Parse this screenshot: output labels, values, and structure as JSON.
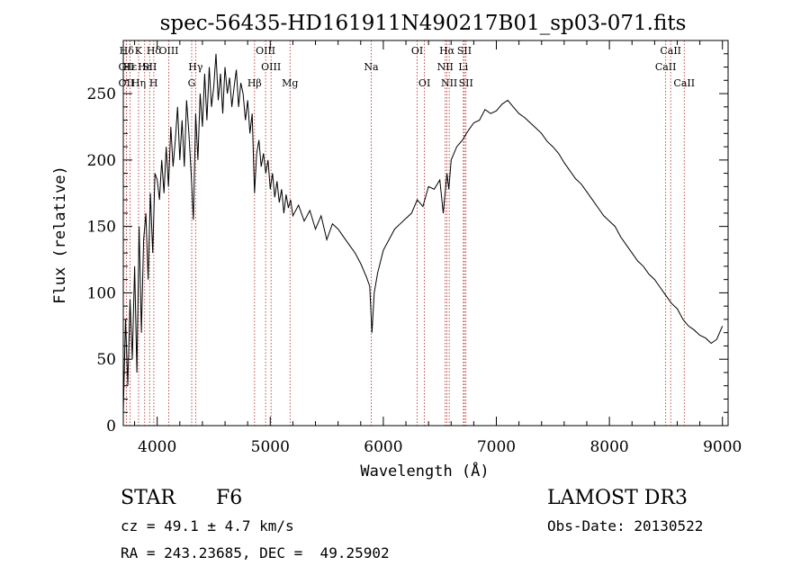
{
  "chart_data": {
    "type": "line",
    "title": "spec-56435-HD161911N490217B01_sp03-071.fits",
    "xlabel": "Wavelength (Å)",
    "ylabel": "Flux (relative)",
    "xlim": [
      3700,
      9050
    ],
    "ylim": [
      0,
      290
    ],
    "x_ticks": [
      4000,
      5000,
      6000,
      7000,
      8000,
      9000
    ],
    "y_ticks": [
      0,
      50,
      100,
      150,
      200,
      250
    ],
    "x_minor_step": 200,
    "y_minor_step": 10,
    "series": [
      {
        "name": "spectrum",
        "color": "#000000",
        "x": [
          3700,
          3720,
          3740,
          3760,
          3780,
          3800,
          3820,
          3840,
          3860,
          3880,
          3900,
          3920,
          3940,
          3960,
          3980,
          4000,
          4020,
          4040,
          4060,
          4080,
          4100,
          4120,
          4140,
          4160,
          4180,
          4200,
          4220,
          4240,
          4260,
          4280,
          4300,
          4320,
          4340,
          4360,
          4380,
          4400,
          4420,
          4440,
          4460,
          4480,
          4500,
          4520,
          4540,
          4560,
          4580,
          4600,
          4620,
          4640,
          4660,
          4680,
          4700,
          4720,
          4740,
          4760,
          4780,
          4800,
          4820,
          4840,
          4861,
          4880,
          4900,
          4920,
          4940,
          4960,
          4980,
          5000,
          5020,
          5040,
          5060,
          5080,
          5100,
          5120,
          5140,
          5160,
          5180,
          5200,
          5250,
          5300,
          5350,
          5400,
          5450,
          5500,
          5550,
          5600,
          5650,
          5700,
          5750,
          5800,
          5850,
          5880,
          5900,
          5920,
          5950,
          6000,
          6050,
          6100,
          6150,
          6200,
          6250,
          6300,
          6350,
          6400,
          6450,
          6500,
          6530,
          6563,
          6580,
          6600,
          6650,
          6700,
          6750,
          6800,
          6850,
          6900,
          6950,
          7000,
          7050,
          7100,
          7150,
          7200,
          7250,
          7300,
          7350,
          7400,
          7450,
          7500,
          7550,
          7600,
          7650,
          7700,
          7750,
          7800,
          7850,
          7900,
          7950,
          8000,
          8050,
          8100,
          8150,
          8200,
          8250,
          8300,
          8350,
          8400,
          8450,
          8500,
          8550,
          8600,
          8650,
          8700,
          8750,
          8800,
          8850,
          8900,
          8950,
          9000
        ],
        "y": [
          10,
          80,
          30,
          95,
          50,
          120,
          40,
          150,
          70,
          140,
          160,
          110,
          175,
          130,
          190,
          185,
          170,
          200,
          175,
          210,
          180,
          225,
          195,
          215,
          240,
          200,
          230,
          195,
          245,
          220,
          190,
          155,
          235,
          200,
          250,
          225,
          265,
          230,
          270,
          240,
          255,
          280,
          245,
          265,
          235,
          270,
          250,
          262,
          240,
          255,
          268,
          240,
          258,
          250,
          230,
          245,
          220,
          235,
          175,
          205,
          215,
          195,
          205,
          190,
          200,
          178,
          190,
          172,
          184,
          168,
          178,
          160,
          174,
          164,
          170,
          158,
          166,
          154,
          162,
          148,
          158,
          140,
          152,
          148,
          142,
          136,
          130,
          122,
          112,
          105,
          70,
          100,
          115,
          132,
          140,
          148,
          152,
          156,
          160,
          170,
          165,
          180,
          178,
          185,
          160,
          190,
          178,
          200,
          210,
          215,
          222,
          228,
          230,
          238,
          235,
          237,
          242,
          245,
          240,
          235,
          232,
          228,
          224,
          220,
          214,
          210,
          205,
          198,
          192,
          186,
          182,
          176,
          170,
          164,
          158,
          154,
          150,
          142,
          136,
          130,
          124,
          120,
          114,
          110,
          104,
          98,
          92,
          88,
          80,
          75,
          72,
          68,
          66,
          62,
          65,
          75
        ]
      }
    ],
    "line_markers": [
      {
        "label": "Hδ",
        "wl": 3730,
        "row": 1
      },
      {
        "label": "OII",
        "wl": 3727,
        "row": 2
      },
      {
        "label": "OII",
        "wl": 3727,
        "row": 3
      },
      {
        "label": "Hε",
        "wl": 3760,
        "row": 2
      },
      {
        "label": "Hη",
        "wl": 3835,
        "row": 3
      },
      {
        "label": "K",
        "wl": 3834,
        "row": 1
      },
      {
        "label": "Hε",
        "wl": 3889,
        "row": 2
      },
      {
        "label": "Hδ",
        "wl": 3970,
        "row": 1
      },
      {
        "label": "SII",
        "wl": 3933,
        "row": 2
      },
      {
        "label": "H",
        "wl": 3968,
        "row": 3
      },
      {
        "label": "OIII",
        "wl": 4102,
        "row": 1
      },
      {
        "label": "Hγ",
        "wl": 4340,
        "row": 2
      },
      {
        "label": "G",
        "wl": 4305,
        "row": 3
      },
      {
        "label": "OIII",
        "wl": 4959,
        "row": 1
      },
      {
        "label": "OIII",
        "wl": 5007,
        "row": 2
      },
      {
        "label": "Hβ",
        "wl": 4861,
        "row": 3
      },
      {
        "label": "Mg",
        "wl": 5175,
        "row": 3
      },
      {
        "label": "Na",
        "wl": 5893,
        "row": 2
      },
      {
        "label": "OI",
        "wl": 6300,
        "row": 1
      },
      {
        "label": "OI",
        "wl": 6364,
        "row": 3
      },
      {
        "label": "Hα",
        "wl": 6563,
        "row": 1
      },
      {
        "label": "NII",
        "wl": 6548,
        "row": 2
      },
      {
        "label": "NII",
        "wl": 6583,
        "row": 3
      },
      {
        "label": "SII",
        "wl": 6717,
        "row": 1
      },
      {
        "label": "Li",
        "wl": 6708,
        "row": 2
      },
      {
        "label": "SII",
        "wl": 6731,
        "row": 3
      },
      {
        "label": "CaII",
        "wl": 8542,
        "row": 1
      },
      {
        "label": "CaII",
        "wl": 8498,
        "row": 2
      },
      {
        "label": "CaII",
        "wl": 8662,
        "row": 3
      }
    ],
    "marker_lines_wl": [
      3727,
      3760,
      3835,
      3889,
      3933,
      3970,
      4102,
      4305,
      4340,
      4861,
      4959,
      5007,
      5175,
      5893,
      6300,
      6364,
      6548,
      6563,
      6583,
      6708,
      6717,
      6731,
      8498,
      8542,
      8662
    ],
    "marker_color": "#b22222"
  },
  "info": {
    "object_type": "STAR",
    "subclass": "F6",
    "survey": "LAMOST DR3",
    "cz": "cz = 49.1 ± 4.7 km/s",
    "obs_date": "Obs-Date: 20130522",
    "coords": "RA = 243.23685, DEC =  49.25902"
  }
}
